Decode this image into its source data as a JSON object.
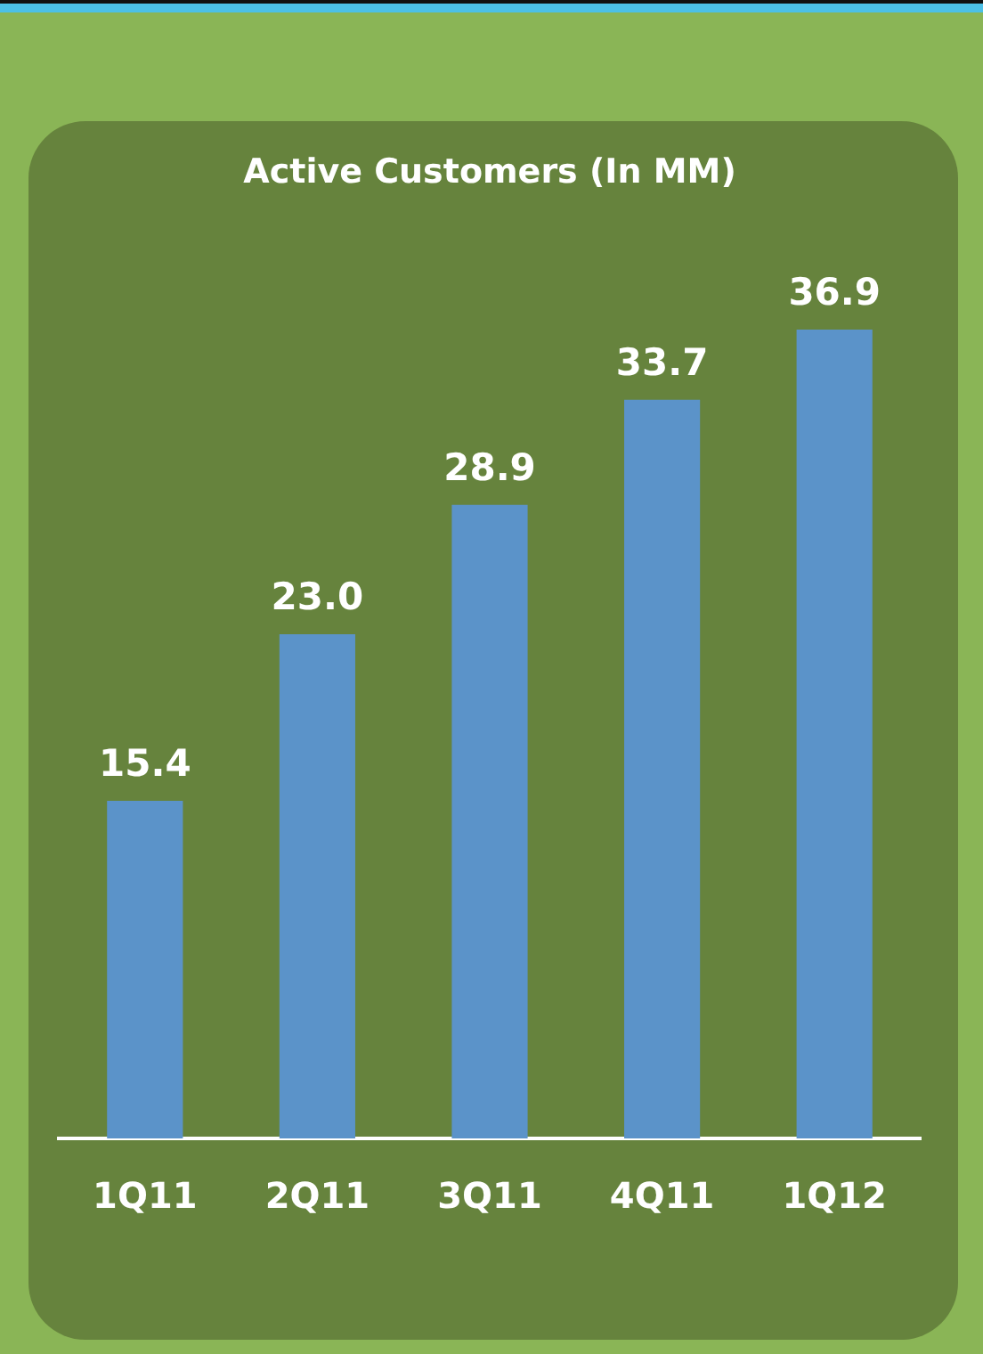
{
  "chart_data": {
    "type": "bar",
    "title": "Active Customers (In MM)",
    "categories": [
      "1Q11",
      "2Q11",
      "3Q11",
      "4Q11",
      "1Q12"
    ],
    "values": [
      15.4,
      23.0,
      28.9,
      33.7,
      36.9
    ],
    "value_labels": [
      "15.4",
      "23.0",
      "28.9",
      "33.7",
      "36.9"
    ],
    "color": "#5b93c9",
    "tick_labels": "x"
  }
}
